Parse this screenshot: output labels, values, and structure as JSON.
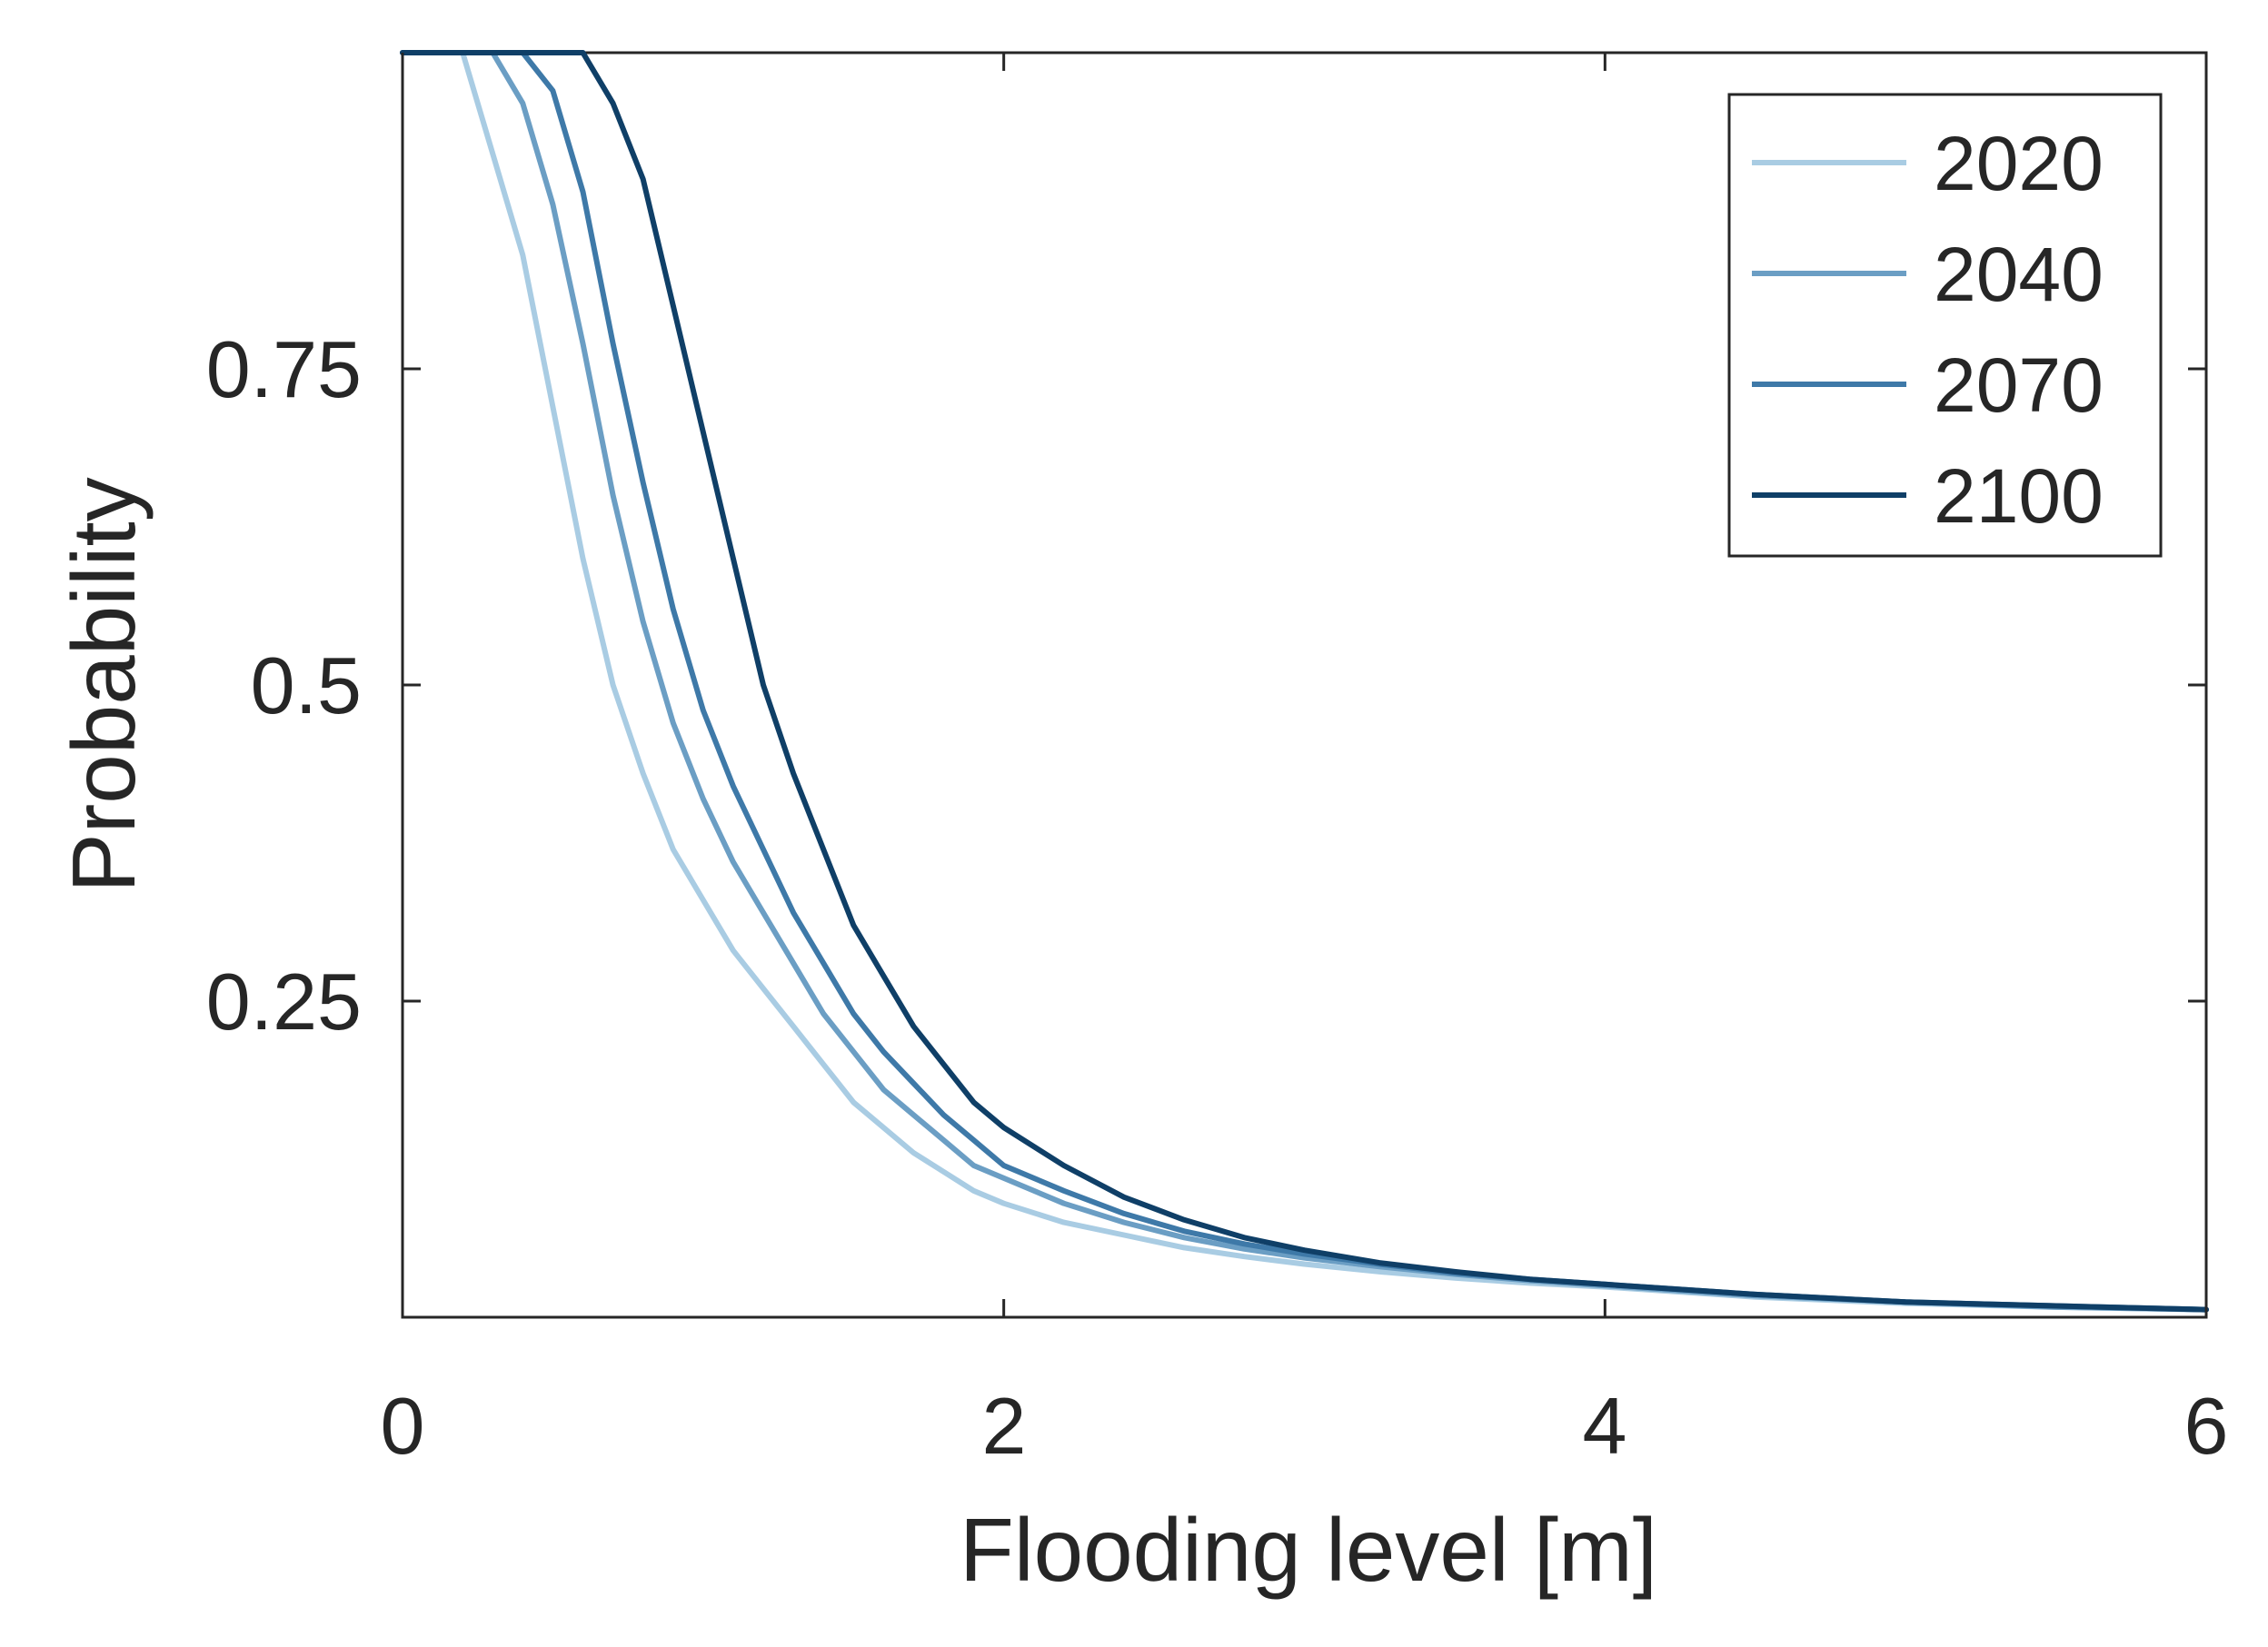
{
  "chart_data": {
    "type": "line",
    "xlabel": "Flooding level [m]",
    "ylabel": "Probability",
    "xlim": [
      0,
      6
    ],
    "ylim": [
      0,
      1
    ],
    "xticks": [
      0,
      2,
      4,
      6
    ],
    "xtick_labels": [
      "0",
      "2",
      "4",
      "6"
    ],
    "yticks": [
      0.25,
      0.5,
      0.75
    ],
    "ytick_labels": [
      "0.25",
      "0.5",
      "0.75"
    ],
    "grid": false,
    "legend_position": "top-right",
    "x": [
      0.0,
      0.1,
      0.2,
      0.3,
      0.4,
      0.5,
      0.6,
      0.7,
      0.8,
      0.9,
      1.0,
      1.1,
      1.2,
      1.3,
      1.4,
      1.5,
      1.6,
      1.7,
      1.8,
      1.9,
      2.0,
      2.2,
      2.4,
      2.6,
      2.8,
      3.0,
      3.25,
      3.5,
      3.75,
      4.0,
      4.5,
      5.0,
      5.5,
      6.0
    ],
    "series": [
      {
        "name": "2020",
        "color": "#a9cce3",
        "values": [
          1.0,
          1.0,
          1.0,
          0.92,
          0.84,
          0.72,
          0.6,
          0.5,
          0.43,
          0.37,
          0.33,
          0.29,
          0.26,
          0.23,
          0.2,
          0.17,
          0.15,
          0.13,
          0.115,
          0.1,
          0.09,
          0.075,
          0.065,
          0.055,
          0.048,
          0.042,
          0.036,
          0.031,
          0.027,
          0.024,
          0.016,
          0.011,
          0.008,
          0.006
        ]
      },
      {
        "name": "2040",
        "color": "#6b9ec4",
        "values": [
          1.0,
          1.0,
          1.0,
          1.0,
          0.96,
          0.88,
          0.77,
          0.65,
          0.55,
          0.47,
          0.41,
          0.36,
          0.32,
          0.28,
          0.24,
          0.21,
          0.18,
          0.16,
          0.14,
          0.12,
          0.11,
          0.09,
          0.075,
          0.063,
          0.054,
          0.047,
          0.04,
          0.034,
          0.029,
          0.025,
          0.017,
          0.012,
          0.008,
          0.006
        ]
      },
      {
        "name": "2070",
        "color": "#3e79a8",
        "values": [
          1.0,
          1.0,
          1.0,
          1.0,
          1.0,
          0.97,
          0.89,
          0.77,
          0.66,
          0.56,
          0.48,
          0.42,
          0.37,
          0.32,
          0.28,
          0.24,
          0.21,
          0.185,
          0.16,
          0.14,
          0.12,
          0.1,
          0.082,
          0.068,
          0.058,
          0.05,
          0.042,
          0.035,
          0.03,
          0.026,
          0.018,
          0.012,
          0.009,
          0.006
        ]
      },
      {
        "name": "2100",
        "color": "#0f3f67",
        "values": [
          1.0,
          1.0,
          1.0,
          1.0,
          1.0,
          1.0,
          1.0,
          0.96,
          0.9,
          0.8,
          0.7,
          0.6,
          0.5,
          0.43,
          0.37,
          0.31,
          0.27,
          0.23,
          0.2,
          0.17,
          0.15,
          0.12,
          0.095,
          0.077,
          0.063,
          0.053,
          0.043,
          0.036,
          0.03,
          0.026,
          0.018,
          0.012,
          0.009,
          0.006
        ]
      }
    ]
  }
}
